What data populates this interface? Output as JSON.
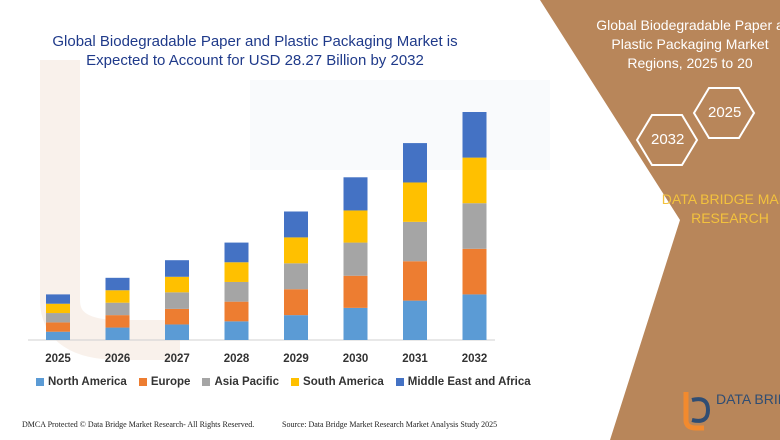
{
  "title_lines": [
    "Global Biodegradable Paper and Plastic Packaging Market is",
    "Expected to Account for USD 28.27 Billion by 2032"
  ],
  "side_panel": {
    "title_lines": [
      "Global Biodegradable Paper a",
      "Plastic Packaging Market",
      "Regions, 2025 to 20"
    ],
    "hex_2025": "2025",
    "hex_2032": "2032",
    "brand_lines": [
      "DATA BRIDGE MARK",
      "RESEARCH"
    ],
    "logo_text": "DATA BRID"
  },
  "footer": {
    "dmca": "DMCA Protected © Data Bridge Market Research-  All Rights Reserved.",
    "source": "Source: Data Bridge Market Research  Market Analysis Study 2025"
  },
  "colors": {
    "title": "#1f3a8a",
    "panel": "#b8865a",
    "brand": "#f3c23d"
  },
  "chart_data": {
    "type": "bar",
    "stacked": true,
    "categories": [
      "2025",
      "2026",
      "2027",
      "2028",
      "2029",
      "2030",
      "2031",
      "2032"
    ],
    "series": [
      {
        "name": "North America",
        "color": "#5b9bd5",
        "values": [
          8,
          12,
          15,
          18,
          24,
          31,
          38,
          44
        ]
      },
      {
        "name": "Europe",
        "color": "#ed7d31",
        "values": [
          9,
          12,
          15,
          19,
          25,
          31,
          38,
          44
        ]
      },
      {
        "name": "Asia Pacific",
        "color": "#a5a5a5",
        "values": [
          9,
          12,
          16,
          19,
          25,
          32,
          38,
          44
        ]
      },
      {
        "name": "South America",
        "color": "#ffc000",
        "values": [
          9,
          12,
          15,
          19,
          25,
          31,
          38,
          44
        ]
      },
      {
        "name": "Middle East and Africa",
        "color": "#4472c4",
        "values": [
          9,
          12,
          16,
          19,
          25,
          32,
          38,
          44
        ]
      }
    ],
    "legend_position": "bottom",
    "grid": false
  }
}
